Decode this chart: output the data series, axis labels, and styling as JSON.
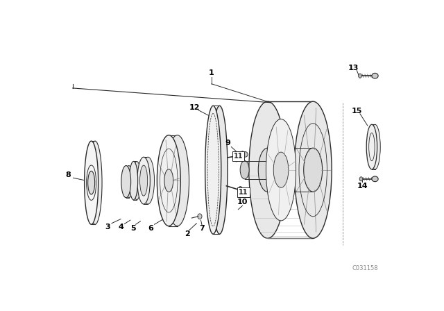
{
  "background_color": "#ffffff",
  "line_color": "#2a2a2a",
  "label_color": "#000000",
  "fig_width": 6.4,
  "fig_height": 4.48,
  "dpi": 100,
  "watermark": "C031158"
}
